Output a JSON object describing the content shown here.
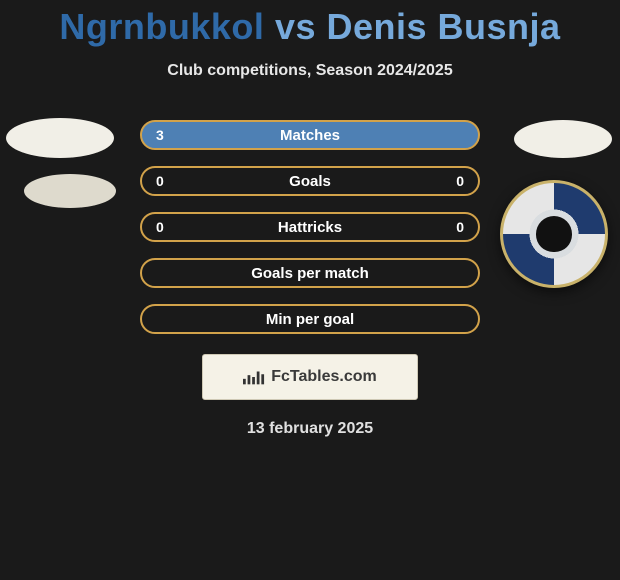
{
  "title": {
    "player1": "Ngrnbukkol",
    "vs": "vs",
    "player2": "Denis Busnja"
  },
  "subtitle": "Club competitions, Season 2024/2025",
  "bars": [
    {
      "label": "Matches",
      "left": "3",
      "right": "",
      "filled": true
    },
    {
      "label": "Goals",
      "left": "0",
      "right": "0",
      "filled": false
    },
    {
      "label": "Hattricks",
      "left": "0",
      "right": "0",
      "filled": false
    },
    {
      "label": "Goals per match",
      "left": "",
      "right": "",
      "filled": false
    },
    {
      "label": "Min per goal",
      "left": "",
      "right": "",
      "filled": false
    }
  ],
  "site_badge": "FcTables.com",
  "date": "13 february 2025",
  "colors": {
    "background": "#1a1a1a",
    "bar_border": "#d2a24a",
    "bar_fill": "#4e80b4",
    "title_p1": "#2f6aa8",
    "title_p2": "#76a9db"
  }
}
